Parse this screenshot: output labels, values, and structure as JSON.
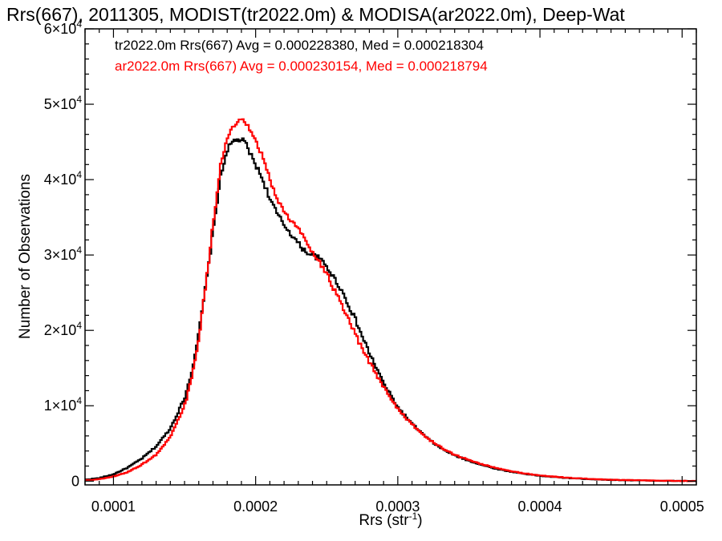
{
  "chart_data": {
    "type": "line",
    "title": "Rrs(667), 2011305, MODIST(tr2022.0m) & MODISA(ar2022.0m), Deep-Wat",
    "xlabel_base": "Rrs (str",
    "xlabel_exp": "-1",
    "xlabel_close": ")",
    "ylabel": "Number of Observations",
    "xlim": [
      8e-05,
      0.00051
    ],
    "ylim": [
      -500,
      60000
    ],
    "x_ticks": [
      {
        "value": 0.0001,
        "label": "0.0001"
      },
      {
        "value": 0.0002,
        "label": "0.0002"
      },
      {
        "value": 0.0003,
        "label": "0.0003"
      },
      {
        "value": 0.0004,
        "label": "0.0004"
      },
      {
        "value": 0.0005,
        "label": "0.0005"
      }
    ],
    "y_ticks": [
      {
        "value": 0,
        "mant": "0",
        "exp": ""
      },
      {
        "value": 10000,
        "mant": "1×10",
        "exp": "4"
      },
      {
        "value": 20000,
        "mant": "2×10",
        "exp": "4"
      },
      {
        "value": 30000,
        "mant": "3×10",
        "exp": "4"
      },
      {
        "value": 40000,
        "mant": "4×10",
        "exp": "4"
      },
      {
        "value": 50000,
        "mant": "5×10",
        "exp": "4"
      },
      {
        "value": 60000,
        "mant": "6×10",
        "exp": "4"
      }
    ],
    "series": [
      {
        "name": "tr2022.0m Rrs(667) Avg = 0.000228380, Med = 0.000218304",
        "color": "#000000",
        "x": [
          8e-05,
          9e-05,
          0.0001,
          0.00011,
          0.00012,
          0.00013,
          0.00014,
          0.00015,
          0.000155,
          0.00016,
          0.000165,
          0.00017,
          0.000175,
          0.00018,
          0.000185,
          0.00019,
          0.000193,
          0.000196,
          0.0002,
          0.000205,
          0.00021,
          0.000215,
          0.00022,
          0.000225,
          0.00023,
          0.000235,
          0.00024,
          0.000245,
          0.00025,
          0.000255,
          0.00026,
          0.000265,
          0.00027,
          0.000275,
          0.00028,
          0.00029,
          0.0003,
          0.00031,
          0.00032,
          0.00033,
          0.00034,
          0.00035,
          0.00036,
          0.00037,
          0.00038,
          0.00039,
          0.0004,
          0.00042,
          0.00044,
          0.00046,
          0.00048,
          0.0005,
          0.00051
        ],
        "y": [
          200,
          400,
          900,
          1800,
          3000,
          4600,
          7000,
          11000,
          14500,
          19500,
          26000,
          33000,
          40000,
          44000,
          45200,
          45300,
          44800,
          43500,
          42000,
          40000,
          37500,
          35500,
          34000,
          32800,
          31500,
          30500,
          30000,
          29500,
          28500,
          27000,
          25500,
          23500,
          21500,
          19200,
          17000,
          13000,
          9800,
          7600,
          5800,
          4400,
          3400,
          2700,
          2100,
          1600,
          1250,
          950,
          700,
          400,
          220,
          120,
          60,
          20,
          10
        ]
      },
      {
        "name": "ar2022.0m Rrs(667) Avg = 0.000230154, Med = 0.000218794",
        "color": "#ff0000",
        "x": [
          8e-05,
          9e-05,
          0.0001,
          0.00011,
          0.00012,
          0.00013,
          0.00014,
          0.00015,
          0.000155,
          0.00016,
          0.000165,
          0.00017,
          0.000175,
          0.00018,
          0.000185,
          0.00019,
          0.000193,
          0.000196,
          0.0002,
          0.000205,
          0.00021,
          0.000215,
          0.00022,
          0.000225,
          0.00023,
          0.000235,
          0.00024,
          0.000245,
          0.00025,
          0.000255,
          0.00026,
          0.000265,
          0.00027,
          0.000275,
          0.00028,
          0.00029,
          0.0003,
          0.00031,
          0.00032,
          0.00033,
          0.00034,
          0.00035,
          0.00036,
          0.00037,
          0.00038,
          0.00039,
          0.0004,
          0.00042,
          0.00044,
          0.00046,
          0.00048,
          0.0005,
          0.00051
        ],
        "y": [
          100,
          250,
          600,
          1200,
          2200,
          3500,
          5800,
          10000,
          13500,
          19000,
          26000,
          34000,
          41500,
          45500,
          47200,
          47800,
          47500,
          46500,
          45000,
          43000,
          40000,
          37500,
          35800,
          34500,
          33500,
          32000,
          30500,
          29000,
          27500,
          25500,
          23500,
          21500,
          19500,
          17500,
          15800,
          12500,
          9600,
          7500,
          5800,
          4500,
          3500,
          2800,
          2200,
          1700,
          1300,
          1000,
          750,
          440,
          250,
          140,
          70,
          25,
          10
        ]
      }
    ],
    "grid": false,
    "legend_position": "top-left"
  }
}
